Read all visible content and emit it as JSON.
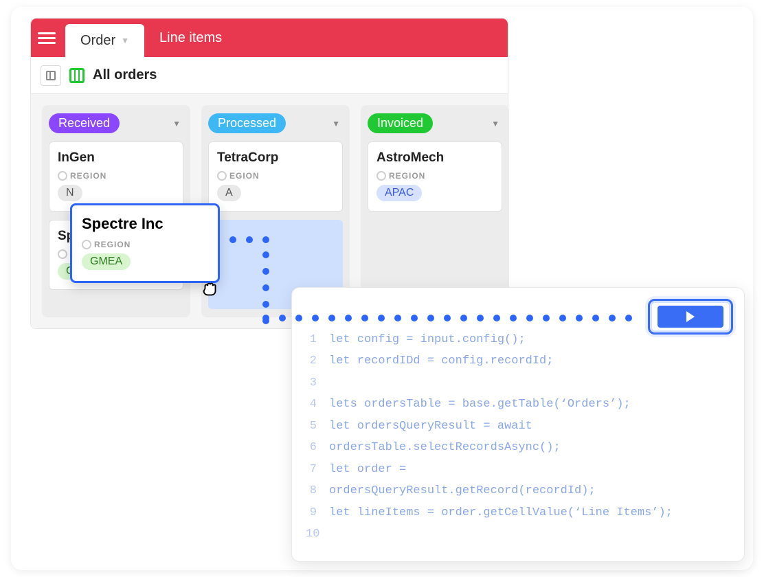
{
  "colors": {
    "header_bg": "#e8384f",
    "accent_blue": "#2d66f6",
    "status": {
      "received": "#8b46ff",
      "processed": "#3db8f5",
      "invoiced": "#20c933"
    },
    "region_chip": {
      "gmea_bg": "#d8f5d0",
      "gmea_text": "#2d7a1f",
      "apac_bg": "#d6e0ff",
      "apac_text": "#3a5bd9",
      "na_bg": "#e8e8e8",
      "na_text": "#555555"
    }
  },
  "header": {
    "tabs": [
      {
        "label": "Order",
        "active": true,
        "has_caret": true
      },
      {
        "label": "Line items",
        "active": false,
        "has_caret": false
      }
    ]
  },
  "subheader": {
    "title": "All orders"
  },
  "board": {
    "columns": [
      {
        "status": "Received",
        "pill_bg": "#8b46ff",
        "cards": [
          {
            "name": "InGen",
            "region_label": "REGION",
            "region_value_partial": "N",
            "chip_bg": "#e8e8e8",
            "chip_color": "#555555"
          },
          {
            "name": "Sp",
            "region_label": "RE",
            "region_value": "GMEA",
            "chip_bg": "#d8f5d0",
            "chip_color": "#2d7a1f"
          }
        ]
      },
      {
        "status": "Processed",
        "pill_bg": "#3db8f5",
        "cards": [
          {
            "name": "TetraCorp",
            "region_label": "EGION",
            "region_value_partial": "A",
            "chip_bg": "#e8e8e8",
            "chip_color": "#555555"
          }
        ],
        "has_drop_slot": true
      },
      {
        "status": "Invoiced",
        "pill_bg": "#20c933",
        "cards": [
          {
            "name": "AstroMech",
            "region_label": "REGION",
            "region_value": "APAC",
            "chip_bg": "#d6e0ff",
            "chip_color": "#3a5bd9"
          }
        ]
      }
    ]
  },
  "drag_card": {
    "name": "Spectre Inc",
    "region_label": "REGION",
    "region_value": "GMEA",
    "chip_bg": "#d8f5d0",
    "chip_color": "#2d7a1f"
  },
  "code_panel": {
    "lines": [
      "let config = input.config();",
      "let recordIDd = config.recordId;",
      "",
      "lets ordersTable = base.getTable(‘Orders’);",
      "let ordersQueryResult = await",
      "ordersTable.selectRecordsAsync();",
      "let order =",
      "ordersQueryResult.getRecord(recordId);",
      "let lineItems = order.getCellValue(‘Line Items’);",
      ""
    ]
  }
}
